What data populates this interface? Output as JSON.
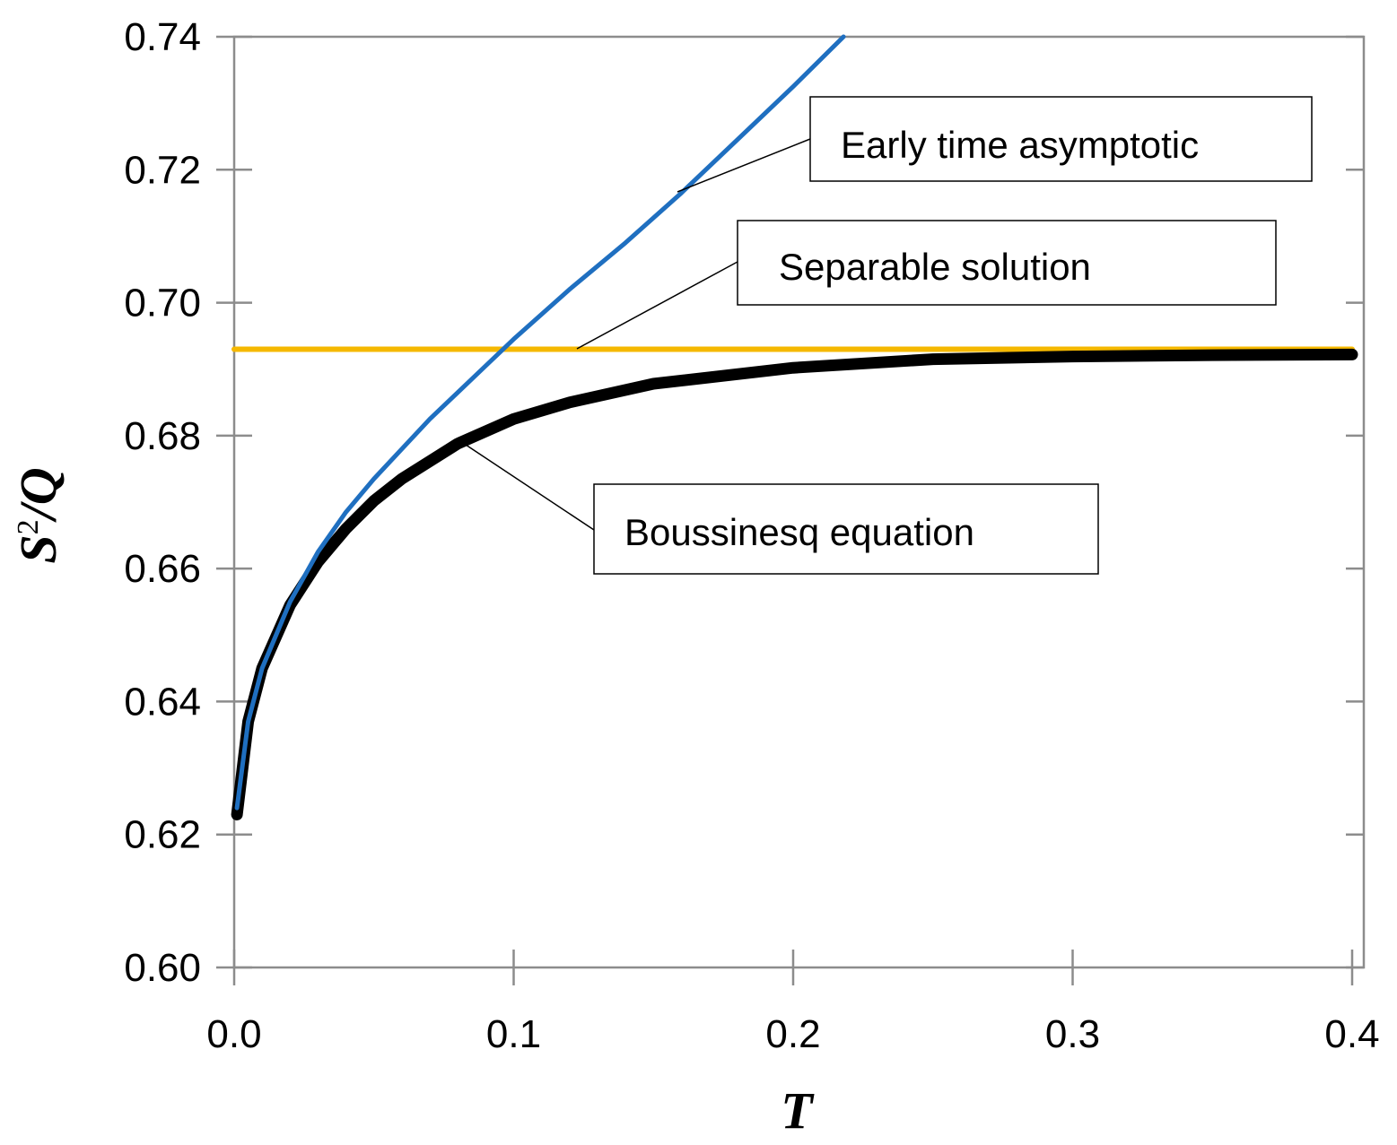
{
  "chart_data": {
    "type": "line",
    "xlabel": "T",
    "ylabel": {
      "base": "S",
      "sup": "2",
      "rest": "/Q"
    },
    "xlim": [
      0.0,
      0.4
    ],
    "ylim": [
      0.6,
      0.74
    ],
    "x_ticks": [
      "0.0",
      "0.1",
      "0.2",
      "0.3",
      "0.4"
    ],
    "y_ticks": [
      "0.60",
      "0.62",
      "0.64",
      "0.66",
      "0.68",
      "0.70",
      "0.72",
      "0.74"
    ],
    "grid": false,
    "annotations": [
      {
        "text": "Early time asymptotic",
        "series": "early"
      },
      {
        "text": "Separable solution",
        "series": "separable"
      },
      {
        "text": "Boussinesq equation",
        "series": "boussinesq"
      }
    ],
    "series": [
      {
        "id": "separable",
        "color": "#F5B800",
        "x": [
          0.0,
          0.4
        ],
        "y": [
          0.693,
          0.693
        ]
      },
      {
        "id": "early",
        "color": "#1F6FC0",
        "x": [
          0.001,
          0.005,
          0.01,
          0.02,
          0.03,
          0.04,
          0.05,
          0.06,
          0.07,
          0.08,
          0.09,
          0.1,
          0.12,
          0.14,
          0.16,
          0.18,
          0.2,
          0.218
        ],
        "y": [
          0.624,
          0.637,
          0.645,
          0.655,
          0.6625,
          0.6685,
          0.6735,
          0.678,
          0.6825,
          0.6865,
          0.6905,
          0.6945,
          0.702,
          0.709,
          0.7165,
          0.7245,
          0.7325,
          0.74
        ]
      },
      {
        "id": "boussinesq",
        "color": "#000000",
        "x": [
          0.001,
          0.005,
          0.01,
          0.02,
          0.03,
          0.04,
          0.05,
          0.06,
          0.08,
          0.1,
          0.12,
          0.15,
          0.2,
          0.25,
          0.3,
          0.35,
          0.4
        ],
        "y": [
          0.623,
          0.637,
          0.645,
          0.6545,
          0.661,
          0.666,
          0.6702,
          0.6735,
          0.6788,
          0.6825,
          0.685,
          0.6878,
          0.6902,
          0.6915,
          0.6919,
          0.6921,
          0.6922
        ]
      }
    ]
  }
}
